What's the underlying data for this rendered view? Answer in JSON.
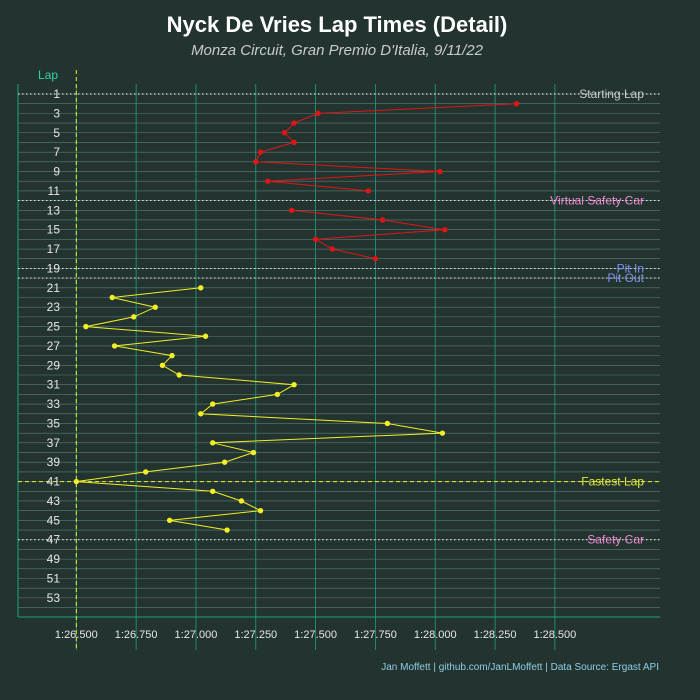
{
  "colors": {
    "background": "#233430",
    "grid_major": "#1e9f7f",
    "grid_minor": "#5a7e74",
    "accent": "#2fd4a6",
    "series_red": "#e01515",
    "series_yellow": "#f2ee27",
    "annotation_gray": "#c9ccc9",
    "annotation_pink": "#ef88cf",
    "annotation_blue": "#7f8fe8",
    "annotation_yellow": "#e0ea3a",
    "caption": "#8ecde6"
  },
  "chart_data": {
    "type": "line",
    "title": "Nyck De Vries Lap Times (Detail)",
    "subtitle": "Monza Circuit, Gran Premio D'Italia, 9/11/22",
    "ylabel": "Lap",
    "caption": "Jan Moffett | github.com/JanLMoffett | Data Source: Ergast API",
    "y_reversed": true,
    "ylim": [
      1,
      53
    ],
    "y_ticks": [
      1,
      3,
      5,
      7,
      9,
      11,
      13,
      15,
      17,
      19,
      21,
      23,
      25,
      27,
      29,
      31,
      33,
      35,
      37,
      39,
      41,
      43,
      45,
      47,
      49,
      51,
      53
    ],
    "x_ticks": [
      {
        "value": 86.5,
        "label": "1:26.500"
      },
      {
        "value": 86.75,
        "label": "1:26.750"
      },
      {
        "value": 87.0,
        "label": "1:27.000"
      },
      {
        "value": 87.25,
        "label": "1:27.250"
      },
      {
        "value": 87.5,
        "label": "1:27.500"
      },
      {
        "value": 87.75,
        "label": "1:27.750"
      },
      {
        "value": 88.0,
        "label": "1:28.000"
      },
      {
        "value": 88.25,
        "label": "1:28.250"
      },
      {
        "value": 88.5,
        "label": "1:28.500"
      }
    ],
    "xlim": [
      86.38,
      88.62
    ],
    "series": [
      {
        "color": "#e01515",
        "segments": [
          [
            [
              2,
              88.34
            ],
            [
              3,
              87.51
            ],
            [
              4,
              87.41
            ],
            [
              5,
              87.37
            ],
            [
              6,
              87.41
            ],
            [
              7,
              87.27
            ],
            [
              8,
              87.25
            ],
            [
              9,
              88.02
            ],
            [
              10,
              87.3
            ],
            [
              11,
              87.72
            ]
          ],
          [
            [
              13,
              87.4
            ],
            [
              14,
              87.78
            ],
            [
              15,
              88.04
            ],
            [
              16,
              87.5
            ],
            [
              17,
              87.57
            ],
            [
              18,
              87.75
            ]
          ]
        ]
      },
      {
        "color": "#f2ee27",
        "segments": [
          [
            [
              21,
              87.02
            ],
            [
              22,
              86.65
            ],
            [
              23,
              86.83
            ],
            [
              24,
              86.74
            ],
            [
              25,
              86.54
            ],
            [
              26,
              87.04
            ],
            [
              27,
              86.66
            ],
            [
              28,
              86.9
            ],
            [
              29,
              86.86
            ],
            [
              30,
              86.93
            ],
            [
              31,
              87.41
            ],
            [
              32,
              87.34
            ],
            [
              33,
              87.07
            ],
            [
              34,
              87.02
            ],
            [
              35,
              87.8
            ],
            [
              36,
              88.03
            ],
            [
              37,
              87.07
            ],
            [
              38,
              87.24
            ],
            [
              39,
              87.12
            ],
            [
              40,
              86.79
            ],
            [
              41,
              86.5
            ],
            [
              42,
              87.07
            ],
            [
              43,
              87.19
            ],
            [
              44,
              87.27
            ],
            [
              45,
              86.89
            ],
            [
              46,
              87.13
            ]
          ]
        ]
      }
    ],
    "fastest_lap": {
      "lap": 41,
      "time": 86.5
    },
    "lap_markers": [
      {
        "lap": 1,
        "label": "Starting Lap",
        "color": "#c9ccc9"
      },
      {
        "lap": 12,
        "label": "Virtual Safety Car",
        "color": "#ef88cf"
      },
      {
        "lap": 19,
        "label": "Pit In",
        "color": "#7f8fe8"
      },
      {
        "lap": 20,
        "label": "Pit Out",
        "color": "#7f8fe8"
      },
      {
        "lap": 41,
        "label": "Fastest Lap",
        "color": "#e0ea3a"
      },
      {
        "lap": 47,
        "label": "Safety Car",
        "color": "#ef88cf"
      }
    ]
  }
}
